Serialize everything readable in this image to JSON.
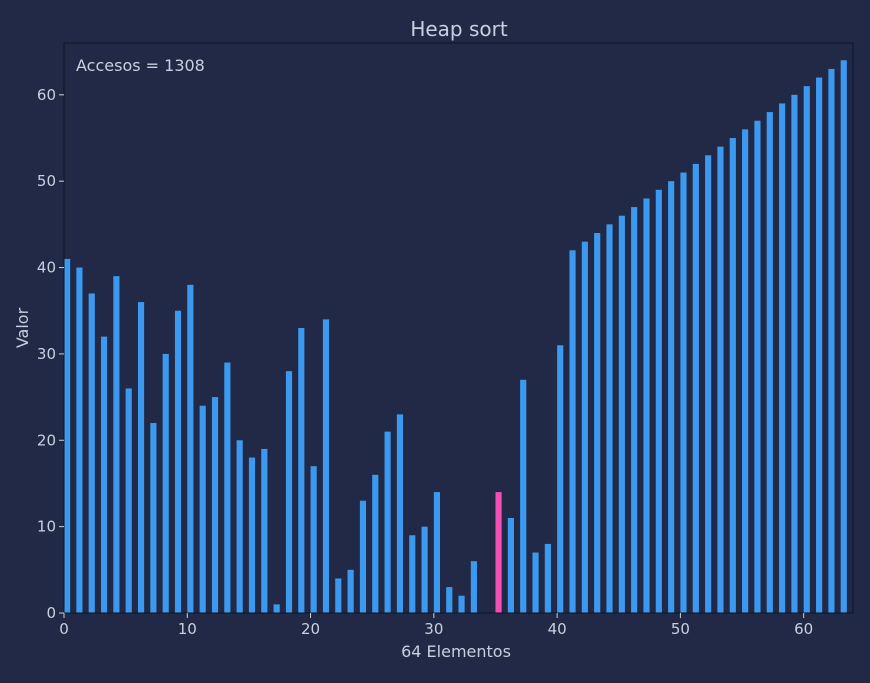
{
  "colors": {
    "background": "#212946",
    "bar": "#3b9af0",
    "highlight": "#f24fb4",
    "text": "#c8d0e0",
    "frame": "#0f1320"
  },
  "chart_data": {
    "type": "bar",
    "title": "Heap sort",
    "xlabel": "64 Elementos",
    "ylabel": "Valor",
    "annotation": "Accesos = 1308",
    "xlim": [
      0,
      64
    ],
    "ylim": [
      0,
      66
    ],
    "xticks": [
      0,
      10,
      20,
      30,
      40,
      50,
      60
    ],
    "yticks": [
      0,
      10,
      20,
      30,
      40,
      50,
      60
    ],
    "grid": false,
    "highlight_index": 35,
    "values": [
      41,
      40,
      37,
      32,
      39,
      26,
      36,
      22,
      30,
      35,
      38,
      24,
      25,
      29,
      20,
      18,
      19,
      1,
      28,
      33,
      17,
      34,
      4,
      5,
      13,
      16,
      21,
      23,
      9,
      10,
      14,
      3,
      2,
      6,
      0,
      14,
      11,
      27,
      7,
      8,
      31,
      42,
      43,
      44,
      45,
      46,
      47,
      48,
      49,
      50,
      51,
      52,
      53,
      54,
      55,
      56,
      57,
      58,
      59,
      60,
      61,
      62,
      63,
      64
    ]
  }
}
